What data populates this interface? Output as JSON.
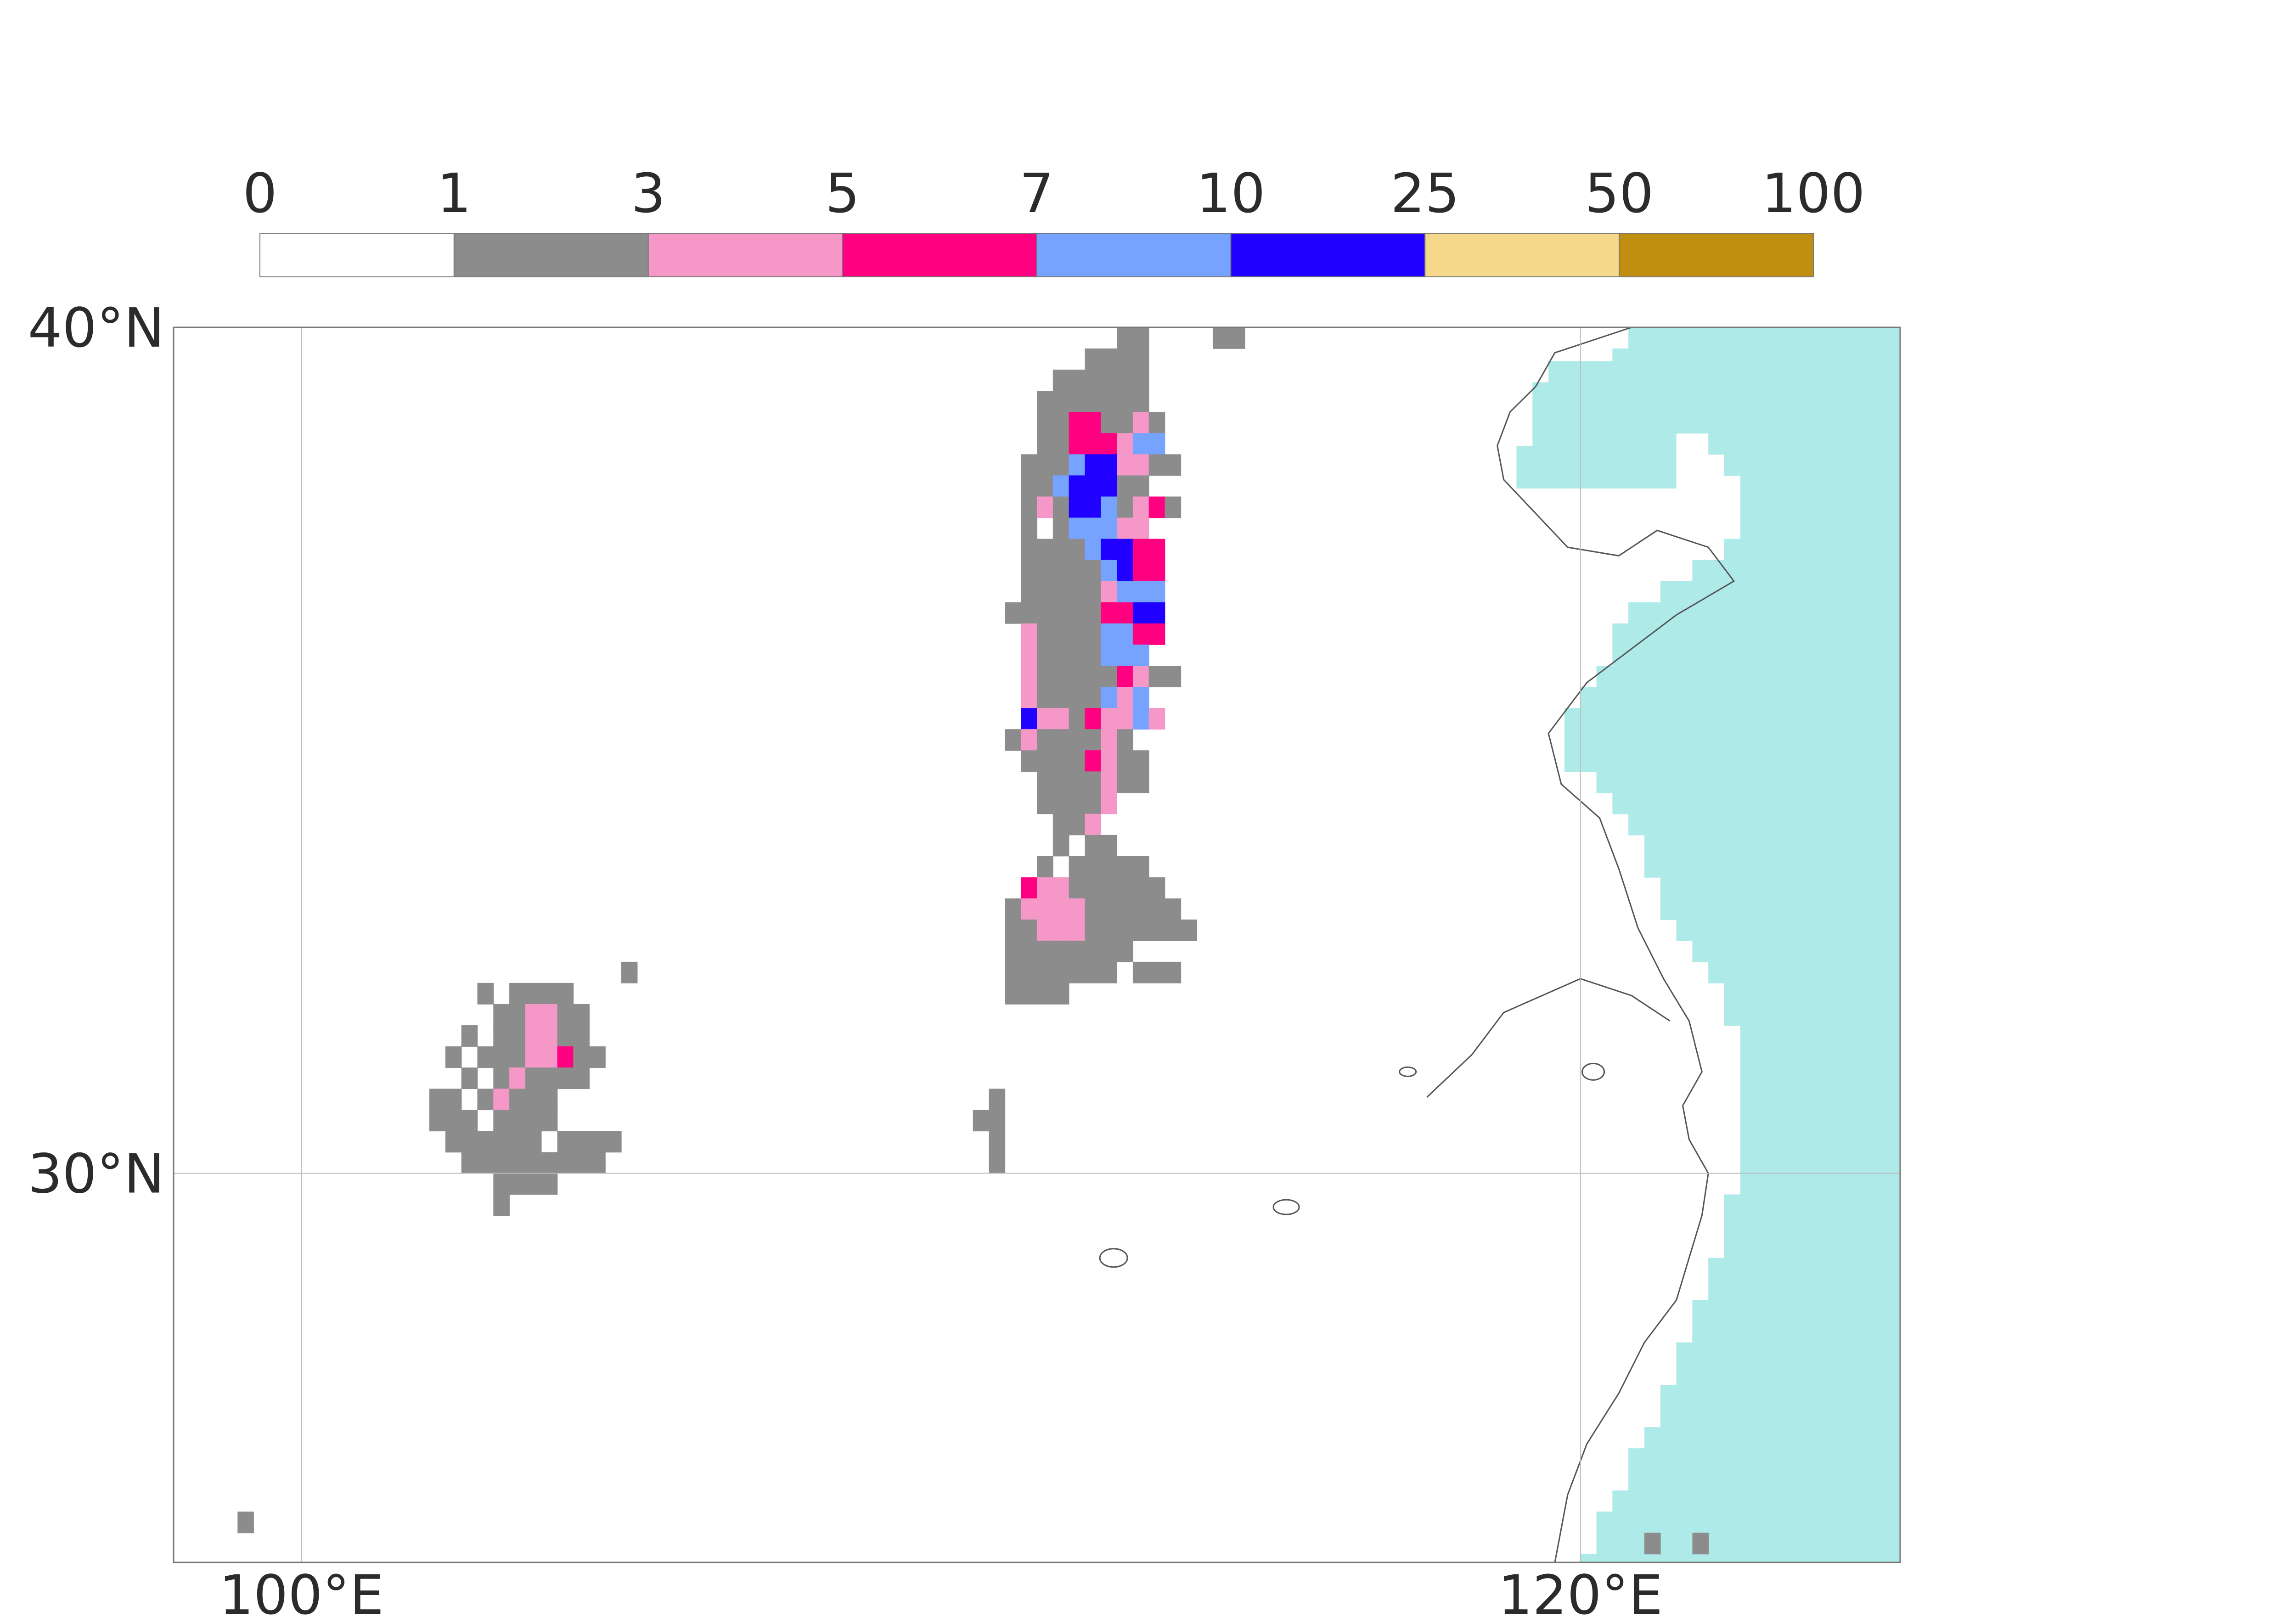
{
  "colorbar": {
    "levels": [
      "0",
      "1",
      "3",
      "5",
      "7",
      "10",
      "25",
      "50",
      "100"
    ],
    "colors": [
      "#ffffff",
      "#8c8c8c",
      "#f598c8",
      "#ff0080",
      "#75a3ff",
      "#2000ff",
      "#f5d88a",
      "#c08f12"
    ]
  },
  "map": {
    "extent": {
      "lon": [
        98,
        125
      ],
      "lat": [
        25.4,
        40
      ]
    },
    "lat_ticks": [
      {
        "value": 40,
        "label": "40°N"
      },
      {
        "value": 30,
        "label": "30°N"
      }
    ],
    "lon_ticks": [
      {
        "value": 100,
        "label": "100°E"
      },
      {
        "value": 120,
        "label": "120°E"
      }
    ],
    "sea_color": "#aeeae8",
    "grid_color": "#bdbdbd",
    "coast_color": "#555555"
  },
  "chart_data": {
    "type": "heatmap",
    "title": "",
    "xlabel": "",
    "ylabel": "",
    "xlim": [
      98,
      125
    ],
    "ylim": [
      25.4,
      40
    ],
    "cell_size_deg": 0.25,
    "bins": [
      [
        0,
        1
      ],
      [
        1,
        3
      ],
      [
        3,
        5
      ],
      [
        5,
        7
      ],
      [
        7,
        10
      ],
      [
        10,
        25
      ],
      [
        25,
        50
      ],
      [
        50,
        100
      ]
    ],
    "cell_legend": {
      "g": "1-3",
      "p": "3-5",
      "m": "5-7",
      "l": "7-10",
      "b": "10-25"
    },
    "grid_origin": {
      "lon": 110.75,
      "lat": 39.75
    },
    "grid_rows": [
      "........gg..",
      "......gggg..",
      "....gggggg..",
      "...ggggggg..",
      "...ggmmggpg.",
      "...ggmmmpll.",
      "..ggglbbppgg",
      "..gglbbbgg..",
      "..gpgbblgpmg",
      "..g.glllpp..",
      "..gggglbbmm.",
      "..ggggglbmm.",
      "..gggggplll.",
      ".ggggggmmbb.",
      "..pggggllmm.",
      "..pgggglll..",
      "..pgggggmpgg",
      "..pgggglpl..",
      "..bppgmpplp.",
      ".gpggggpg...",
      "..ggggmpgg..",
      "...ggggpgg..",
      "...ggggp....",
      "....ggp.....",
      "....g.gg....",
      "...g.ggggg..",
      "..mppgggggg.",
      ".gppppgggggg",
      ".ggpppggggggg",
      ".gggggggg...",
      ".ggggggg.ggg",
      ".gggg......."
    ],
    "extra_cells": [
      {
        "lon": 111.5,
        "lat": 32.25,
        "v": "g"
      },
      {
        "lon": 110.75,
        "lat": 30.75,
        "v": "g"
      },
      {
        "lon": 110.5,
        "lat": 30.5,
        "v": "g"
      },
      {
        "lon": 110.75,
        "lat": 30.5,
        "v": "g"
      },
      {
        "lon": 110.75,
        "lat": 30.25,
        "v": "g"
      },
      {
        "lon": 110.75,
        "lat": 30.0,
        "v": "g"
      },
      {
        "lon": 114.25,
        "lat": 39.75,
        "v": "g"
      },
      {
        "lon": 114.5,
        "lat": 39.75,
        "v": "g"
      },
      {
        "lon": 99.0,
        "lat": 25.75,
        "v": "g"
      },
      {
        "lon": 121.0,
        "lat": 25.5,
        "v": "g"
      },
      {
        "lon": 121.75,
        "lat": 25.5,
        "v": "g"
      }
    ],
    "cluster_sw": {
      "grid_origin": {
        "lon": 102.0,
        "lat": 32.25
      },
      "grid_rows": [
        "............g",
        "...g.gggg....",
        "....ggppgg...",
        "..g.ggppgg...",
        ".g.gggppmgg..",
        "..g.gpgggg...",
        "gg.gpggg.....",
        "ggg.gggg.....",
        ".gggggg.gggg.",
        "..ggggggggg..",
        "....gggg.....",
        "....g........"
      ]
    }
  }
}
